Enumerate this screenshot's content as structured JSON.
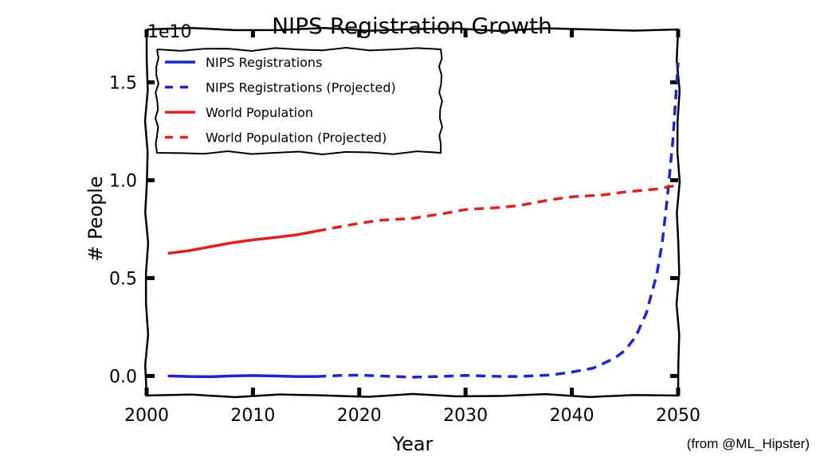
{
  "chart_data": {
    "type": "line",
    "title": "NIPS Registration Growth",
    "xlabel": "Year",
    "ylabel": "# People",
    "y_scale_label": "1e10",
    "xlim": [
      2000,
      2050
    ],
    "ylim": [
      -0.1,
      1.77
    ],
    "x_ticks": [
      2000,
      2010,
      2020,
      2030,
      2040,
      2050
    ],
    "x_tick_labels": [
      "2000",
      "2010",
      "2020",
      "2030",
      "2040",
      "2050"
    ],
    "y_ticks": [
      0,
      0.5,
      1.0,
      1.5
    ],
    "y_tick_labels": [
      "0.0",
      "0.5",
      "1.0",
      "1.5"
    ],
    "grid": false,
    "legend_position": "top-left",
    "series": [
      {
        "name": "NIPS Registrations",
        "color": "#1c25c8",
        "style": "solid",
        "x": [
          2002,
          2004,
          2006,
          2008,
          2010,
          2012,
          2014,
          2016
        ],
        "y": [
          0.0,
          -0.003,
          -0.004,
          0.0,
          0.002,
          0.0,
          -0.003,
          -0.003
        ]
      },
      {
        "name": "NIPS Registrations (Projected)",
        "color": "#1c25c8",
        "style": "dashed",
        "x": [
          2016,
          2018,
          2020,
          2022,
          2025,
          2028,
          2030,
          2033,
          2035,
          2038,
          2040,
          2042,
          2044,
          2045,
          2046,
          2047,
          2048,
          2048.5,
          2049,
          2049.5,
          2050
        ],
        "y": [
          -0.003,
          0.002,
          0.004,
          0.0,
          -0.006,
          -0.002,
          0.003,
          -0.002,
          -0.003,
          0.005,
          0.02,
          0.04,
          0.09,
          0.13,
          0.2,
          0.32,
          0.52,
          0.68,
          0.92,
          1.2,
          1.6
        ]
      },
      {
        "name": "World Population",
        "color": "#dd2222",
        "style": "solid",
        "x": [
          2002,
          2004,
          2006,
          2008,
          2010,
          2012,
          2014,
          2016
        ],
        "y": [
          0.626,
          0.64,
          0.66,
          0.68,
          0.695,
          0.707,
          0.72,
          0.74
        ]
      },
      {
        "name": "World Population (Projected)",
        "color": "#dd2222",
        "style": "dashed",
        "x": [
          2016,
          2018,
          2020,
          2022,
          2025,
          2028,
          2030,
          2033,
          2035,
          2038,
          2040,
          2043,
          2045,
          2048,
          2050
        ],
        "y": [
          0.74,
          0.76,
          0.78,
          0.795,
          0.805,
          0.83,
          0.85,
          0.86,
          0.87,
          0.9,
          0.915,
          0.925,
          0.94,
          0.955,
          0.975
        ]
      }
    ]
  },
  "credit": "(from @ML_Hipster)"
}
